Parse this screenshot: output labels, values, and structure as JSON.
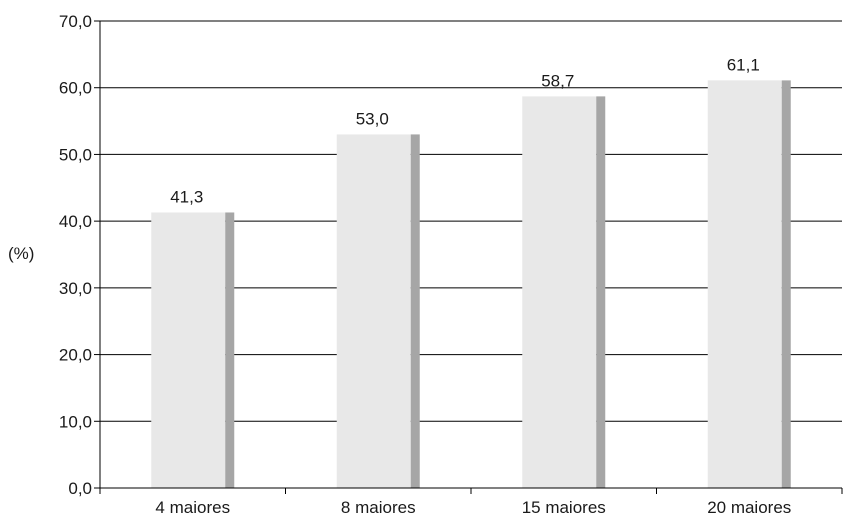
{
  "chart_data": {
    "type": "bar",
    "title": "",
    "xlabel": "",
    "ylabel": "(%)",
    "ylim": [
      0,
      70
    ],
    "yticks": [
      0,
      10,
      20,
      30,
      40,
      50,
      60,
      70
    ],
    "ytick_labels": [
      "0,0",
      "10,0",
      "20,0",
      "30,0",
      "40,0",
      "50,0",
      "60,0",
      "70,0"
    ],
    "categories": [
      "4 maiores",
      "8 maiores",
      "15 maiores",
      "20 maiores"
    ],
    "values": [
      41.3,
      53.0,
      58.7,
      61.1
    ],
    "value_labels": [
      "41,3",
      "53,0",
      "58,7",
      "61,1"
    ],
    "grid": true,
    "legend": "none",
    "colors": {
      "bar_face": "#e8e8e8",
      "bar_side": "#a6a6a6",
      "grid": "#000000",
      "axis": "#000000"
    }
  }
}
